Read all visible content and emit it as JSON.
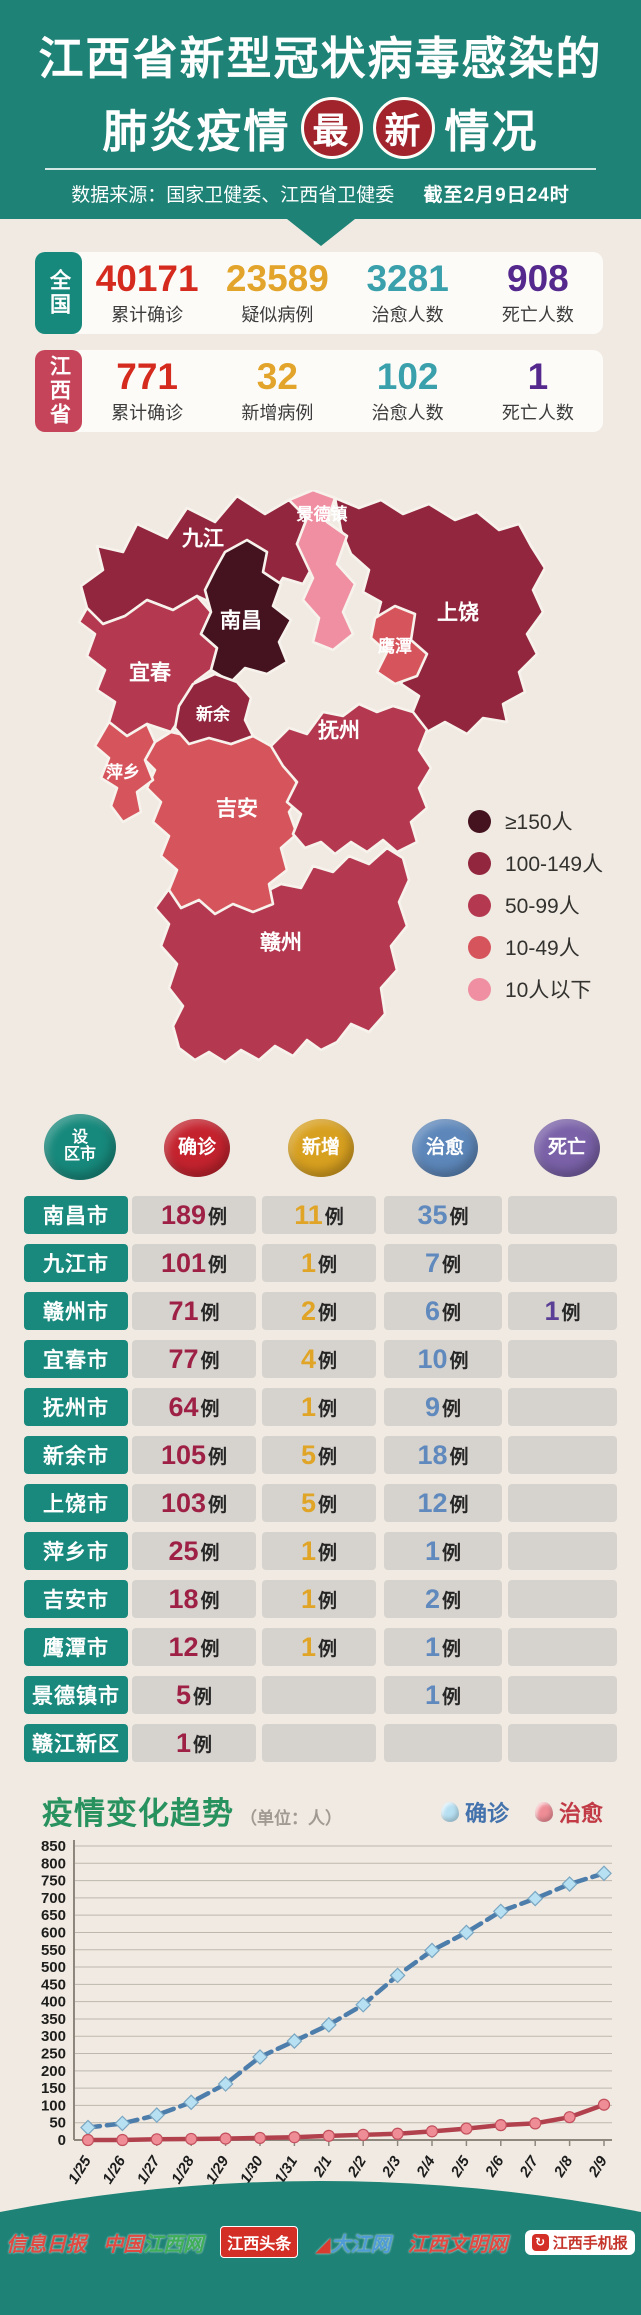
{
  "header": {
    "title_line1": "江西省新型冠状病毒感染的",
    "title_line2_prefix": "肺炎疫情",
    "badges": [
      "最",
      "新"
    ],
    "title_line2_suffix": "情况",
    "source": "数据来源：国家卫健委、江西省卫健委",
    "as_of": "截至2月9日24时"
  },
  "colors": {
    "theme_teal": "#1e8276",
    "cream_bg": "#f0eae2",
    "badge_red": "#a1242c",
    "num_red": "#d52a1e",
    "num_gold": "#e2a42b",
    "num_teal": "#3aa0ab",
    "num_purple": "#54288c"
  },
  "stats_panels": [
    {
      "region": "全国",
      "tab_color": "#17897c",
      "items": [
        {
          "value": "40171",
          "label": "累计确诊",
          "color": "#d52a1e"
        },
        {
          "value": "23589",
          "label": "疑似病例",
          "color": "#e2a42b"
        },
        {
          "value": "3281",
          "label": "治愈人数",
          "color": "#3aa0ab"
        },
        {
          "value": "908",
          "label": "死亡人数",
          "color": "#54288c"
        }
      ]
    },
    {
      "region": "江西省",
      "tab_color": "#c64459",
      "items": [
        {
          "value": "771",
          "label": "累计确诊",
          "color": "#d52a1e"
        },
        {
          "value": "32",
          "label": "新增病例",
          "color": "#e2a42b"
        },
        {
          "value": "102",
          "label": "治愈人数",
          "color": "#3aa0ab"
        },
        {
          "value": "1",
          "label": "死亡人数",
          "color": "#54288c"
        }
      ]
    }
  ],
  "map": {
    "categories": [
      {
        "label": "≥150人",
        "color": "#45121f"
      },
      {
        "label": "100-149人",
        "color": "#92263e"
      },
      {
        "label": "50-99人",
        "color": "#b43950"
      },
      {
        "label": "10-49人",
        "color": "#d6555d"
      },
      {
        "label": "10人以下",
        "color": "#ef8fa1"
      }
    ],
    "regions": [
      {
        "key": "shangrao",
        "name": "上饶",
        "category": 1
      },
      {
        "key": "jiujiang",
        "name": "九江",
        "category": 1
      },
      {
        "key": "yichun",
        "name": "宜春",
        "category": 2
      },
      {
        "key": "ganzhou",
        "name": "赣州",
        "category": 2
      },
      {
        "key": "jian",
        "name": "吉安",
        "category": 3
      },
      {
        "key": "fuzhou",
        "name": "抚州",
        "category": 2
      },
      {
        "key": "jingdezhen",
        "name": "景德镇",
        "category": 4
      },
      {
        "key": "nanchang",
        "name": "南昌",
        "category": 0
      },
      {
        "key": "xinyu",
        "name": "新余",
        "category": 1
      },
      {
        "key": "pingxiang",
        "name": "萍乡",
        "category": 3
      },
      {
        "key": "yingtan",
        "name": "鹰潭",
        "category": 3
      }
    ]
  },
  "table": {
    "headers": [
      {
        "label": "设区市",
        "lines": [
          "设",
          "区市"
        ],
        "color": "#17897c"
      },
      {
        "label": "确诊",
        "lines": [
          "确诊"
        ],
        "color": "#c4232e"
      },
      {
        "label": "新增",
        "lines": [
          "新增"
        ],
        "color": "#d8a01f"
      },
      {
        "label": "治愈",
        "lines": [
          "治愈"
        ],
        "color": "#5d87ba"
      },
      {
        "label": "死亡",
        "lines": [
          "死亡"
        ],
        "color": "#7a61a8"
      }
    ],
    "unit_suffix": "例",
    "value_colors": {
      "confirmed": "#9e2145",
      "new": "#e0a426",
      "cured": "#6089bd",
      "dead": "#5b3f96"
    },
    "rows": [
      {
        "city": "南昌市",
        "confirmed": "189",
        "new": "11",
        "cured": "35",
        "dead": ""
      },
      {
        "city": "九江市",
        "confirmed": "101",
        "new": "1",
        "cured": "7",
        "dead": ""
      },
      {
        "city": "赣州市",
        "confirmed": "71",
        "new": "2",
        "cured": "6",
        "dead": "1"
      },
      {
        "city": "宜春市",
        "confirmed": "77",
        "new": "4",
        "cured": "10",
        "dead": ""
      },
      {
        "city": "抚州市",
        "confirmed": "64",
        "new": "1",
        "cured": "9",
        "dead": ""
      },
      {
        "city": "新余市",
        "confirmed": "105",
        "new": "5",
        "cured": "18",
        "dead": ""
      },
      {
        "city": "上饶市",
        "confirmed": "103",
        "new": "5",
        "cured": "12",
        "dead": ""
      },
      {
        "city": "萍乡市",
        "confirmed": "25",
        "new": "1",
        "cured": "1",
        "dead": ""
      },
      {
        "city": "吉安市",
        "confirmed": "18",
        "new": "1",
        "cured": "2",
        "dead": ""
      },
      {
        "city": "鹰潭市",
        "confirmed": "12",
        "new": "1",
        "cured": "1",
        "dead": ""
      },
      {
        "city": "景德镇市",
        "confirmed": "5",
        "new": "",
        "cured": "1",
        "dead": ""
      },
      {
        "city": "赣江新区",
        "confirmed": "1",
        "new": "",
        "cured": "",
        "dead": ""
      }
    ]
  },
  "chart_data": {
    "type": "line",
    "title": "疫情变化趋势",
    "unit_label": "（单位：人）",
    "x": [
      "1/25",
      "1/26",
      "1/27",
      "1/28",
      "1/29",
      "1/30",
      "1/31",
      "2/1",
      "2/2",
      "2/3",
      "2/4",
      "2/5",
      "2/6",
      "2/7",
      "2/8",
      "2/9"
    ],
    "series": [
      {
        "name": "确诊",
        "line_color": "#4d7dab",
        "marker_color": "#b7e0f2",
        "text_color": "#4372ad",
        "dashed": true,
        "values": [
          36,
          48,
          72,
          109,
          162,
          240,
          286,
          333,
          391,
          476,
          548,
          600,
          661,
          698,
          740,
          771
        ]
      },
      {
        "name": "治愈",
        "line_color": "#b2414e",
        "marker_color": "#ef8d96",
        "text_color": "#c13a46",
        "dashed": false,
        "values": [
          0,
          0,
          2,
          3,
          4,
          6,
          8,
          12,
          15,
          18,
          25,
          33,
          43,
          48,
          66,
          102
        ]
      }
    ],
    "ylim": [
      0,
      850
    ],
    "ytick_step": 50,
    "grid": true,
    "legend_position": "top-right"
  },
  "footer": {
    "logos": [
      {
        "key": "xinxi-ribao",
        "kind": "script",
        "segments": [
          {
            "t": "信息日报",
            "c": "#e04a42"
          }
        ]
      },
      {
        "key": "zhongguo-jiangxi-wang",
        "kind": "script",
        "segments": [
          {
            "t": "中国",
            "c": "#e04a42"
          },
          {
            "t": "江西网",
            "c": "#3fae58"
          }
        ]
      },
      {
        "key": "jiangxi-toutiao",
        "kind": "box",
        "segments": [
          {
            "t": "江西头条",
            "c": "#ffffff"
          }
        ],
        "bg": "#d42f26"
      },
      {
        "key": "dajiang-wang",
        "kind": "script",
        "segments": [
          {
            "t": "◢",
            "c": "#d83c30"
          },
          {
            "t": "大江网",
            "c": "#4f9bd6"
          }
        ]
      },
      {
        "key": "jiangxi-wenming-wang",
        "kind": "script",
        "segments": [
          {
            "t": "江西文明网",
            "c": "#e04a42"
          }
        ]
      },
      {
        "key": "jiangxi-shoujibao",
        "kind": "pill",
        "segments": [
          {
            "t": "江西手机报",
            "c": "#c5342a"
          }
        ],
        "icon": "↻"
      }
    ]
  }
}
